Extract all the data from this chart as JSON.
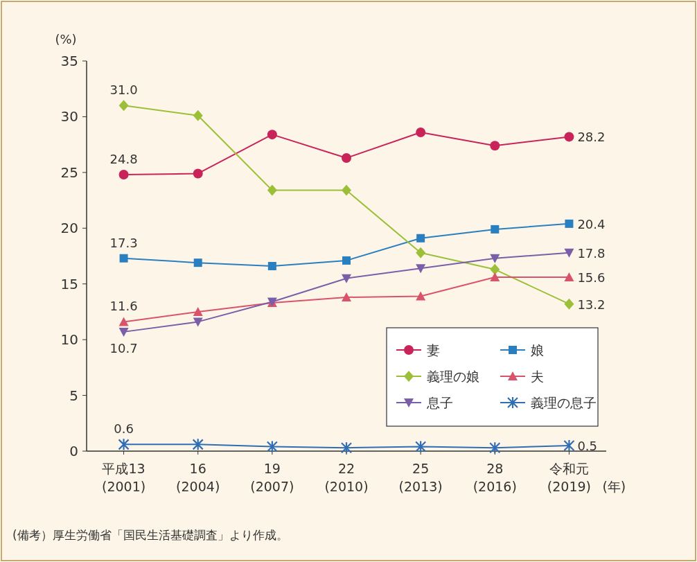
{
  "chart_data": {
    "type": "line",
    "ylabel": "(%)",
    "xlabel": "(年)",
    "categories": [
      "平成13\n(2001)",
      "16\n(2004)",
      "19\n(2007)",
      "22\n(2010)",
      "25\n(2013)",
      "28\n(2016)",
      "令和元\n(2019)"
    ],
    "ylim": [
      0,
      35
    ],
    "yticks": [
      0,
      5,
      10,
      15,
      20,
      25,
      30,
      35
    ],
    "grid": false,
    "legend": "bottom right",
    "series": [
      {
        "name": "妻",
        "color": "#c8245a",
        "marker": "circle",
        "values": [
          24.8,
          24.9,
          28.4,
          26.3,
          28.6,
          27.4,
          28.2
        ],
        "value_labels": [
          "24.8",
          null,
          null,
          null,
          null,
          null,
          "28.2"
        ]
      },
      {
        "name": "娘",
        "color": "#2a7fc0",
        "marker": "square",
        "values": [
          17.3,
          16.9,
          16.6,
          17.1,
          19.1,
          19.9,
          20.4
        ],
        "value_labels": [
          "17.3",
          null,
          null,
          null,
          null,
          null,
          "20.4"
        ]
      },
      {
        "name": "義理の娘",
        "color": "#9cbf3a",
        "marker": "diamond",
        "values": [
          31.0,
          30.1,
          23.4,
          23.4,
          17.8,
          16.3,
          13.2
        ],
        "value_labels": [
          "31.0",
          null,
          null,
          null,
          null,
          null,
          "13.2"
        ]
      },
      {
        "name": "夫",
        "color": "#d9536a",
        "marker": "triangle",
        "values": [
          11.6,
          12.5,
          13.3,
          13.8,
          13.9,
          15.6,
          15.6
        ],
        "value_labels": [
          "11.6",
          null,
          null,
          null,
          null,
          null,
          "15.6"
        ]
      },
      {
        "name": "息子",
        "color": "#7a5ea8",
        "marker": "triangle-down",
        "values": [
          10.7,
          11.6,
          13.4,
          15.5,
          16.4,
          17.3,
          17.8
        ],
        "value_labels": [
          "10.7",
          null,
          null,
          null,
          null,
          null,
          "17.8"
        ]
      },
      {
        "name": "義理の息子",
        "color": "#2f6eb5",
        "marker": "cross",
        "values": [
          0.6,
          0.6,
          0.4,
          0.3,
          0.4,
          0.3,
          0.5
        ],
        "value_labels": [
          "0.6",
          null,
          null,
          null,
          null,
          null,
          "0.5"
        ]
      }
    ],
    "annotations": [
      "(備考）厚生労働省「国民生活基礎調査」より作成。"
    ]
  }
}
